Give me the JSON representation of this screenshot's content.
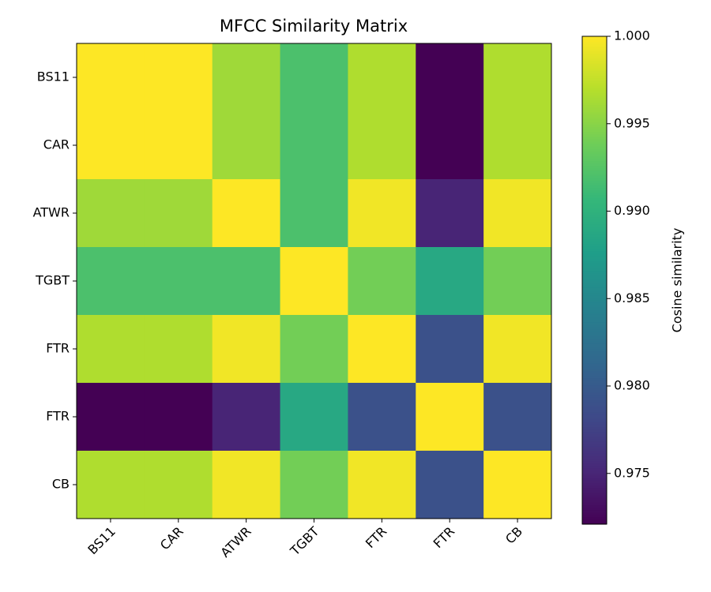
{
  "chart_data": {
    "type": "heatmap",
    "title": "MFCC Similarity Matrix",
    "categories": [
      "BS11",
      "CAR",
      "ATWR",
      "TGBT",
      "FTR",
      "FTR",
      "CB"
    ],
    "z": [
      [
        1,
        1,
        0.996,
        0.992,
        0.9967,
        0.9721,
        0.9967
      ],
      [
        1,
        1,
        0.996,
        0.992,
        0.9967,
        0.9721,
        0.9967
      ],
      [
        0.996,
        0.996,
        1,
        0.992,
        0.9995,
        0.975,
        0.9995
      ],
      [
        0.992,
        0.992,
        0.992,
        1,
        0.994,
        0.9888,
        0.994
      ],
      [
        0.9967,
        0.9967,
        0.9995,
        0.994,
        1,
        0.979,
        0.9995
      ],
      [
        0.9721,
        0.9721,
        0.975,
        0.9888,
        0.979,
        1,
        0.979
      ],
      [
        0.9967,
        0.9967,
        0.9995,
        0.994,
        0.9995,
        0.979,
        1
      ]
    ],
    "colormap": "viridis",
    "clim": [
      0.9721,
      1
    ],
    "colorbar_label": "Cosine similarity",
    "colorbar_ticks": [
      {
        "value": 1,
        "label": "1.000"
      },
      0.995,
      {
        "value": 0.99,
        "label": "0.990"
      },
      0.985,
      {
        "value": 0.98,
        "label": "0.980"
      },
      0.975
    ]
  }
}
